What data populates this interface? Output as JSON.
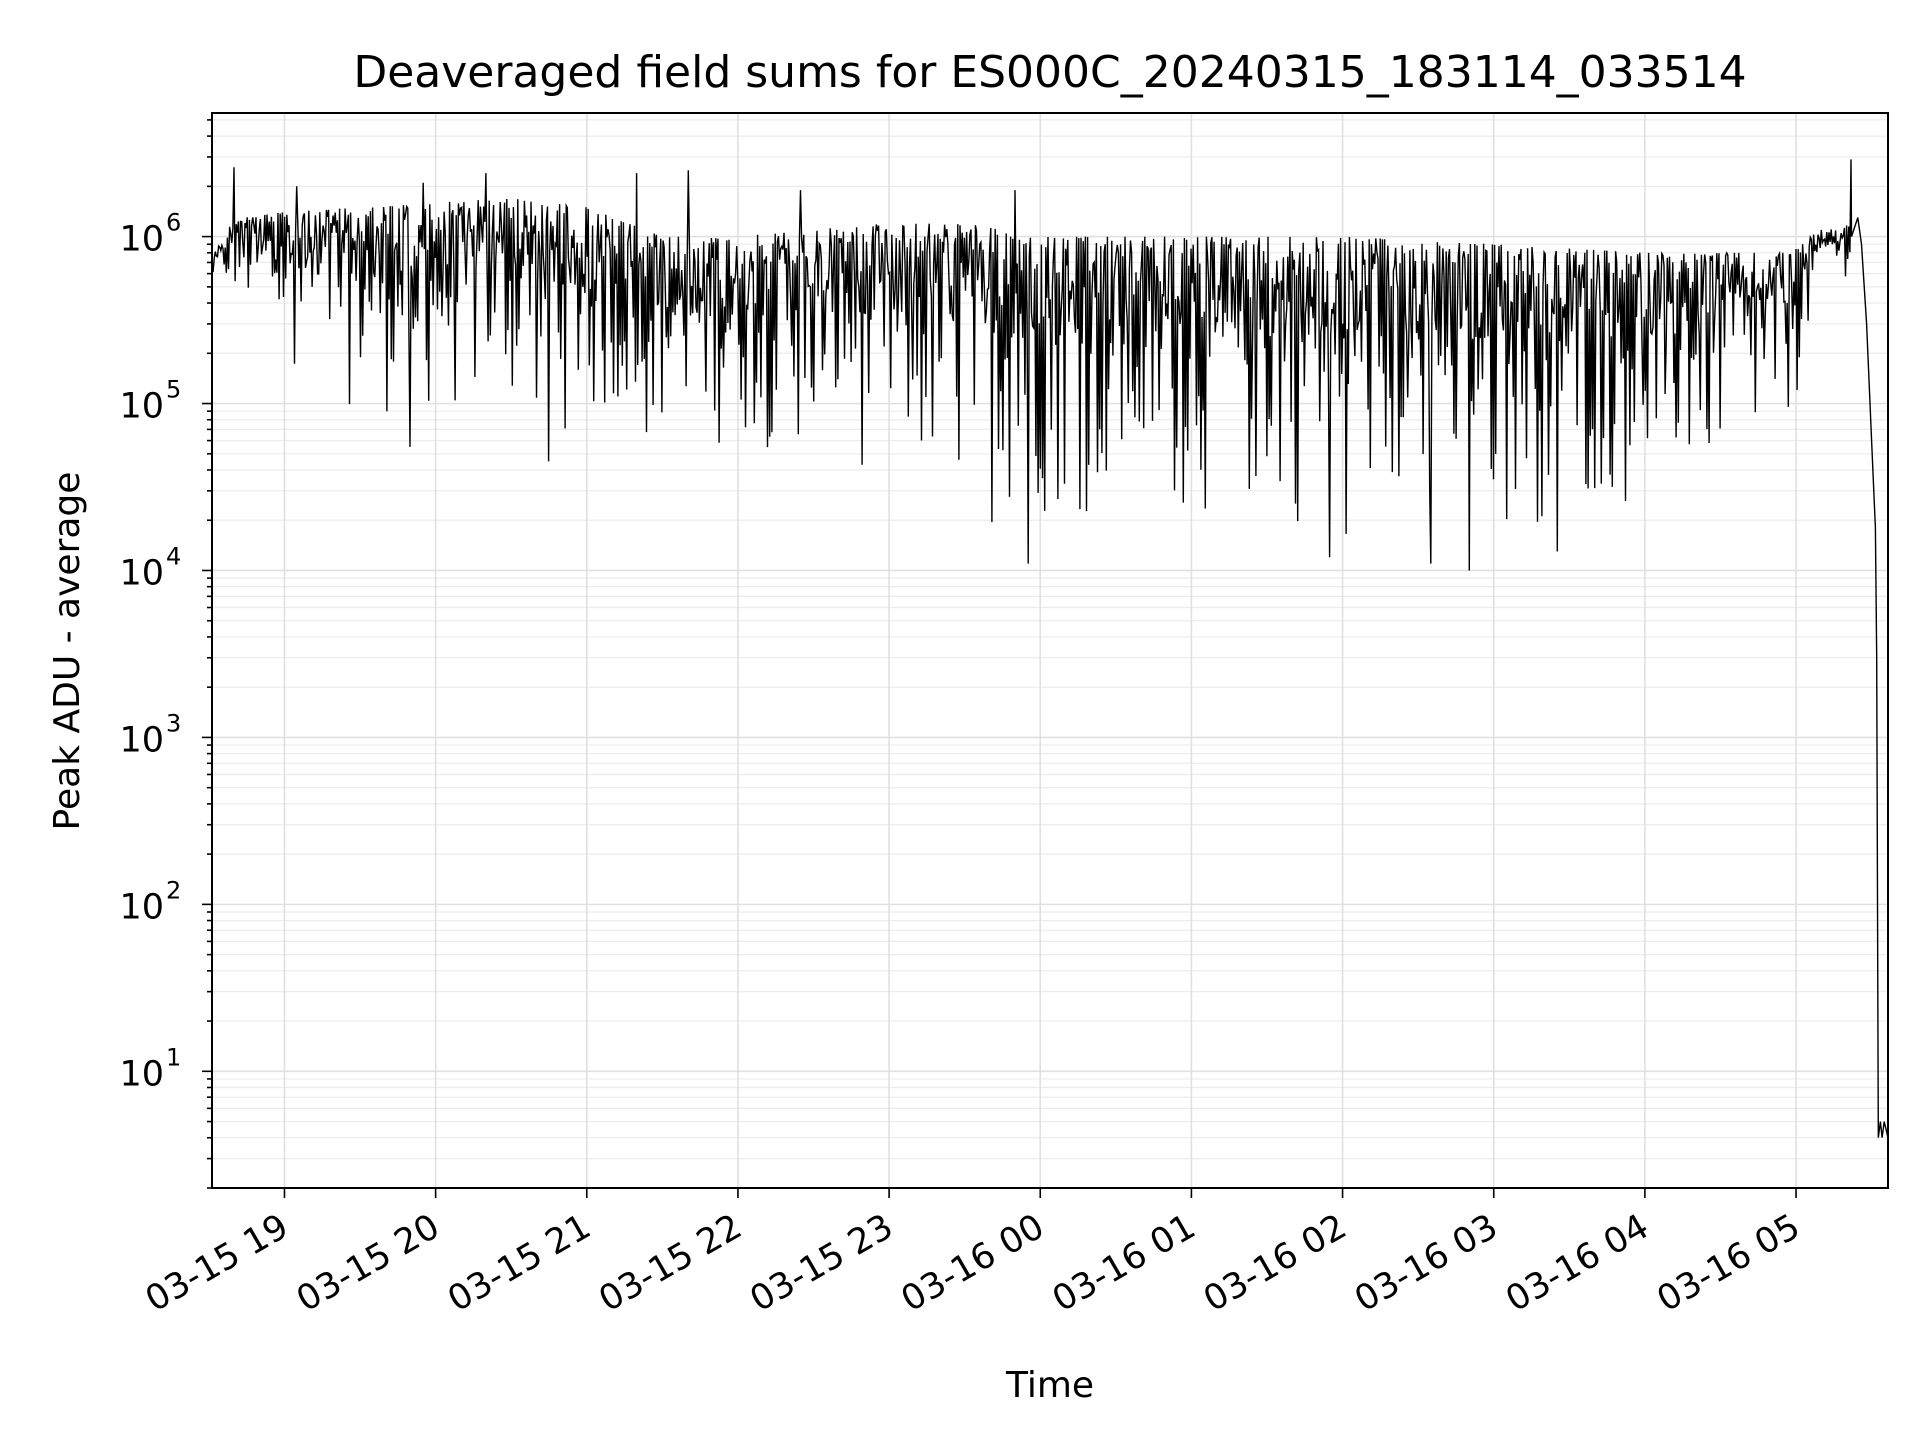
{
  "chart_data": {
    "type": "line",
    "title": "Deaveraged field sums for ES000C_20240315_183114_033514",
    "xlabel": "Time",
    "ylabel": "Peak ADU - average",
    "y_scale": "log",
    "ylim": [
      2,
      5500000
    ],
    "xlim": [
      "2024-03-15T18:31:14",
      "2024-03-16T05:36:30"
    ],
    "grid": true,
    "line_color": "#000000",
    "x_ticks": [
      {
        "t": "2024-03-15T19:00:00",
        "label": "03-15 19"
      },
      {
        "t": "2024-03-15T20:00:00",
        "label": "03-15 20"
      },
      {
        "t": "2024-03-15T21:00:00",
        "label": "03-15 21"
      },
      {
        "t": "2024-03-15T22:00:00",
        "label": "03-15 22"
      },
      {
        "t": "2024-03-15T23:00:00",
        "label": "03-15 23"
      },
      {
        "t": "2024-03-16T00:00:00",
        "label": "03-16 00"
      },
      {
        "t": "2024-03-16T01:00:00",
        "label": "03-16 01"
      },
      {
        "t": "2024-03-16T02:00:00",
        "label": "03-16 02"
      },
      {
        "t": "2024-03-16T03:00:00",
        "label": "03-16 03"
      },
      {
        "t": "2024-03-16T04:00:00",
        "label": "03-16 04"
      },
      {
        "t": "2024-03-16T05:00:00",
        "label": "03-16 05"
      }
    ],
    "y_ticks": [
      {
        "value": 10,
        "base": "10",
        "exp": "1"
      },
      {
        "value": 100,
        "base": "10",
        "exp": "2"
      },
      {
        "value": 1000,
        "base": "10",
        "exp": "3"
      },
      {
        "value": 10000,
        "base": "10",
        "exp": "4"
      },
      {
        "value": 100000,
        "base": "10",
        "exp": "5"
      },
      {
        "value": 1000000,
        "base": "10",
        "exp": "6"
      }
    ],
    "series": [
      {
        "envelope": [
          {
            "t": "2024-03-15T18:31:14",
            "hi": 750000,
            "lo": 500000
          },
          {
            "t": "2024-03-15T18:40:00",
            "hi": 1300000,
            "lo": 400000
          },
          {
            "t": "2024-03-15T19:00:00",
            "hi": 1400000,
            "lo": 150000
          },
          {
            "t": "2024-03-15T19:30:00",
            "hi": 1500000,
            "lo": 80000
          },
          {
            "t": "2024-03-15T20:00:00",
            "hi": 1600000,
            "lo": 70000
          },
          {
            "t": "2024-03-15T20:30:00",
            "hi": 1700000,
            "lo": 70000
          },
          {
            "t": "2024-03-15T21:00:00",
            "hi": 1500000,
            "lo": 60000
          },
          {
            "t": "2024-03-15T21:30:00",
            "hi": 1000000,
            "lo": 50000
          },
          {
            "t": "2024-03-15T22:00:00",
            "hi": 1000000,
            "lo": 50000
          },
          {
            "t": "2024-03-15T22:30:00",
            "hi": 1100000,
            "lo": 45000
          },
          {
            "t": "2024-03-15T23:00:00",
            "hi": 1200000,
            "lo": 30000
          },
          {
            "t": "2024-03-15T23:30:00",
            "hi": 1200000,
            "lo": 18000
          },
          {
            "t": "2024-03-16T00:00:00",
            "hi": 1000000,
            "lo": 17000
          },
          {
            "t": "2024-03-16T01:00:00",
            "hi": 1000000,
            "lo": 17000
          },
          {
            "t": "2024-03-16T02:00:00",
            "hi": 1000000,
            "lo": 15000
          },
          {
            "t": "2024-03-16T03:00:00",
            "hi": 900000,
            "lo": 16000
          },
          {
            "t": "2024-03-16T04:00:00",
            "hi": 800000,
            "lo": 20000
          },
          {
            "t": "2024-03-16T04:55:00",
            "hi": 800000,
            "lo": 40000
          },
          {
            "t": "2024-03-16T05:10:00",
            "hi": 1100000,
            "lo": 500000
          },
          {
            "t": "2024-03-16T05:25:00",
            "hi": 1200000,
            "lo": 600000
          }
        ],
        "spikes": [
          {
            "t": "2024-03-15T18:40:00",
            "value": 2600000
          },
          {
            "t": "2024-03-15T19:05:00",
            "value": 2000000
          },
          {
            "t": "2024-03-15T19:55:00",
            "value": 2100000
          },
          {
            "t": "2024-03-15T20:20:00",
            "value": 2400000
          },
          {
            "t": "2024-03-15T21:20:00",
            "value": 2400000
          },
          {
            "t": "2024-03-15T21:40:00",
            "value": 2500000
          },
          {
            "t": "2024-03-15T22:25:00",
            "value": 1900000
          },
          {
            "t": "2024-03-15T23:50:00",
            "value": 1900000
          },
          {
            "t": "2024-03-16T05:22:00",
            "value": 2900000
          }
        ],
        "dips": [
          {
            "t": "2024-03-15T19:50:00",
            "value": 55000
          },
          {
            "t": "2024-03-15T20:45:00",
            "value": 45000
          },
          {
            "t": "2024-03-15T23:55:00",
            "value": 11000
          },
          {
            "t": "2024-03-16T01:55:00",
            "value": 12000
          },
          {
            "t": "2024-03-16T02:25:00",
            "value": 10500
          },
          {
            "t": "2024-03-16T02:35:00",
            "value": 11000
          },
          {
            "t": "2024-03-16T02:50:00",
            "value": 10000
          },
          {
            "t": "2024-03-16T03:25:00",
            "value": 13000
          }
        ],
        "tail": [
          {
            "t": "2024-03-16T05:22:00",
            "value": 1000000
          },
          {
            "t": "2024-03-16T05:24:30",
            "value": 1300000
          },
          {
            "t": "2024-03-16T05:26:00",
            "value": 900000
          },
          {
            "t": "2024-03-16T05:28:00",
            "value": 300000
          },
          {
            "t": "2024-03-16T05:30:00",
            "value": 60000
          },
          {
            "t": "2024-03-16T05:31:30",
            "value": 18000
          },
          {
            "t": "2024-03-16T05:32:00",
            "value": 3000
          },
          {
            "t": "2024-03-16T05:32:40",
            "value": 4
          },
          {
            "t": "2024-03-16T05:33:30",
            "value": 5
          },
          {
            "t": "2024-03-16T05:34:10",
            "value": 4
          },
          {
            "t": "2024-03-16T05:35:00",
            "value": 5
          },
          {
            "t": "2024-03-16T05:36:30",
            "value": 4
          }
        ]
      }
    ]
  }
}
